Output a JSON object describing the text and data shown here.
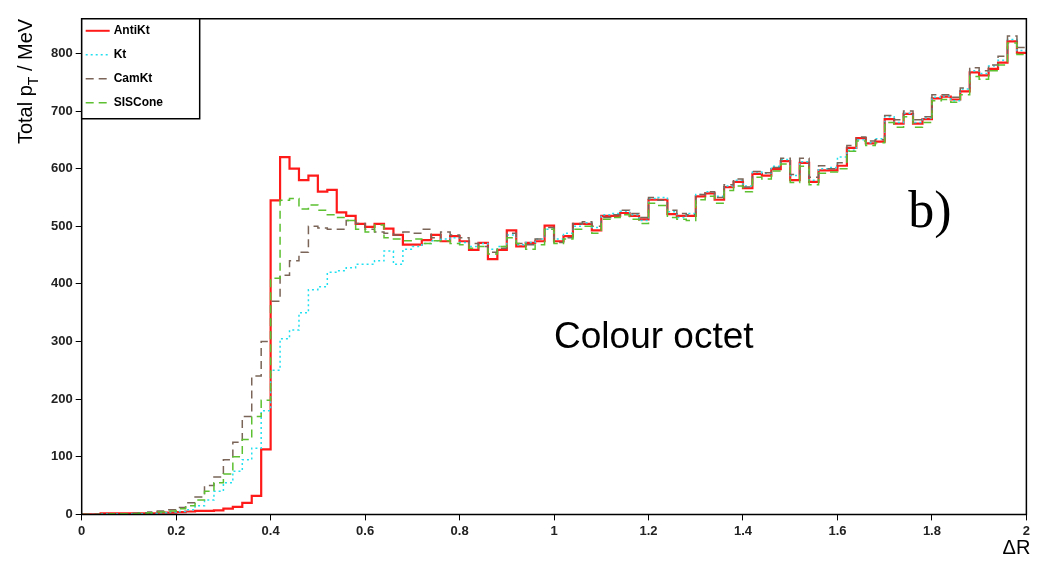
{
  "chart_data": {
    "type": "histogram",
    "xlabel": "ΔR",
    "ylabel": "Total p$_{T}$ / MeV",
    "annotations": [
      "b)",
      "Colour octet"
    ],
    "xlim": [
      0,
      2
    ],
    "xticks": [
      0,
      0.2,
      0.4,
      0.6,
      0.8,
      1,
      1.2,
      1.4,
      1.6,
      1.8,
      2
    ],
    "ylim": [
      0,
      860
    ],
    "yticks": [
      0,
      100,
      200,
      300,
      400,
      500,
      600,
      700,
      800
    ],
    "legend": "top left",
    "bins": [
      0,
      0.02,
      0.04,
      0.06,
      0.08,
      0.1,
      0.12,
      0.14,
      0.16,
      0.18,
      0.2,
      0.22,
      0.24,
      0.26,
      0.28,
      0.3,
      0.32,
      0.34,
      0.36,
      0.38,
      0.4,
      0.42,
      0.44,
      0.46,
      0.48,
      0.5,
      0.52,
      0.54,
      0.56,
      0.58,
      0.6,
      0.62,
      0.64,
      0.66,
      0.68,
      0.7,
      0.72,
      0.74,
      0.76,
      0.78,
      0.8,
      0.82,
      0.84,
      0.86,
      0.88,
      0.9,
      0.92,
      0.94,
      0.96,
      0.98,
      1,
      1.02,
      1.04,
      1.06,
      1.08,
      1.1,
      1.12,
      1.14,
      1.16,
      1.18,
      1.2,
      1.22,
      1.24,
      1.26,
      1.28,
      1.3,
      1.32,
      1.34,
      1.36,
      1.38,
      1.4,
      1.42,
      1.44,
      1.46,
      1.48,
      1.5,
      1.52,
      1.54,
      1.56,
      1.58,
      1.6,
      1.62,
      1.64,
      1.66,
      1.68,
      1.7,
      1.72,
      1.74,
      1.76,
      1.78,
      1.8,
      1.82,
      1.84,
      1.86,
      1.88,
      1.9,
      1.92,
      1.94,
      1.96,
      1.98,
      2
    ],
    "series": [
      {
        "name": "AntiKt",
        "color": "#ff1a1a",
        "line_style": "solid",
        "values": [
          0,
          0,
          2,
          2,
          2,
          2,
          2,
          2,
          3,
          3,
          4,
          5,
          6,
          6,
          7,
          10,
          13,
          20,
          32,
          113,
          545,
          620,
          600,
          580,
          588,
          560,
          563,
          524,
          518,
          504,
          499,
          504,
          496,
          485,
          468,
          468,
          476,
          485,
          474,
          483,
          474,
          459,
          471,
          443,
          459,
          493,
          465,
          471,
          474,
          501,
          474,
          483,
          504,
          504,
          493,
          518,
          518,
          523,
          518,
          512,
          546,
          546,
          521,
          518,
          518,
          552,
          557,
          546,
          568,
          577,
          566,
          591,
          588,
          599,
          613,
          580,
          610,
          577,
          597,
          597,
          605,
          636,
          653,
          644,
          647,
          686,
          678,
          695,
          678,
          686,
          722,
          725,
          720,
          734,
          767,
          762,
          773,
          784,
          821,
          801
        ]
      },
      {
        "name": "Kt",
        "color": "#22e0f0",
        "line_style": "dotted",
        "values": [
          0,
          0,
          1,
          1,
          1,
          1,
          1,
          2,
          3,
          4,
          5,
          8,
          15,
          25,
          40,
          55,
          75,
          95,
          115,
          180,
          250,
          305,
          320,
          350,
          390,
          395,
          420,
          423,
          428,
          434,
          434,
          440,
          457,
          434,
          460,
          465,
          470,
          475,
          478,
          480,
          472,
          465,
          470,
          460,
          465,
          485,
          468,
          472,
          478,
          495,
          478,
          488,
          500,
          506,
          498,
          520,
          522,
          526,
          520,
          510,
          548,
          550,
          525,
          515,
          522,
          555,
          560,
          552,
          570,
          580,
          570,
          594,
          592,
          604,
          616,
          588,
          612,
          580,
          600,
          602,
          620,
          632,
          650,
          645,
          652,
          690,
          680,
          696,
          680,
          688,
          724,
          726,
          718,
          738,
          770,
          765,
          778,
          788,
          824,
          805
        ]
      },
      {
        "name": "CamKt",
        "color": "#7a6558",
        "line_style": "dashed",
        "values": [
          0,
          0,
          0,
          1,
          1,
          2,
          3,
          4,
          6,
          8,
          12,
          20,
          30,
          50,
          65,
          95,
          125,
          170,
          240,
          300,
          370,
          415,
          440,
          455,
          500,
          497,
          495,
          495,
          510,
          505,
          495,
          490,
          488,
          485,
          490,
          488,
          495,
          480,
          490,
          485,
          480,
          470,
          465,
          455,
          462,
          488,
          470,
          468,
          478,
          498,
          472,
          480,
          505,
          508,
          500,
          515,
          520,
          528,
          522,
          515,
          550,
          545,
          528,
          522,
          520,
          555,
          560,
          550,
          572,
          582,
          568,
          595,
          593,
          602,
          618,
          590,
          618,
          585,
          605,
          600,
          610,
          640,
          655,
          648,
          650,
          692,
          685,
          700,
          685,
          690,
          728,
          728,
          724,
          740,
          775,
          770,
          780,
          795,
          830,
          810
        ]
      },
      {
        "name": "SISCone",
        "color": "#5cc030",
        "line_style": "dashed",
        "values": [
          0,
          0,
          0,
          1,
          1,
          1,
          2,
          3,
          4,
          6,
          10,
          15,
          25,
          40,
          55,
          70,
          100,
          130,
          170,
          198,
          410,
          545,
          548,
          530,
          537,
          528,
          520,
          515,
          510,
          495,
          490,
          502,
          480,
          478,
          475,
          478,
          470,
          475,
          475,
          470,
          468,
          462,
          465,
          452,
          465,
          480,
          470,
          460,
          468,
          495,
          470,
          478,
          495,
          500,
          488,
          512,
          515,
          520,
          512,
          505,
          540,
          536,
          515,
          512,
          510,
          546,
          552,
          540,
          562,
          570,
          560,
          585,
          582,
          596,
          608,
          576,
          604,
          572,
          592,
          594,
          600,
          630,
          648,
          640,
          645,
          680,
          672,
          690,
          672,
          680,
          718,
          720,
          715,
          728,
          760,
          755,
          770,
          780,
          818,
          798
        ]
      }
    ]
  }
}
